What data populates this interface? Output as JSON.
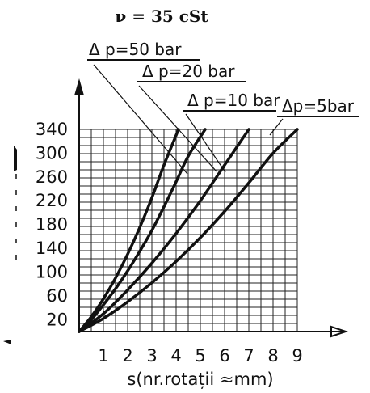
{
  "chart_data": {
    "type": "line",
    "title": "ν = 35 cSt",
    "xlabel": "s(nr.rotații ≈mm)",
    "ylabel": "",
    "xlim": [
      0,
      9
    ],
    "ylim": [
      0,
      340
    ],
    "xticks": [
      "1",
      "2",
      "3",
      "4",
      "5",
      "6",
      "7",
      "8",
      "9"
    ],
    "yticks": [
      "20",
      "60",
      "100",
      "140",
      "180",
      "220",
      "260",
      "300",
      "340"
    ],
    "grid": true,
    "colors": {
      "ink": "#111111",
      "grid": "#222222",
      "background": "#ffffff"
    },
    "series": [
      {
        "name": "Δ p=50 bar",
        "x": [
          0,
          0.5,
          1,
          1.5,
          2,
          2.5,
          3,
          3.5,
          4.1
        ],
        "y": [
          0,
          25,
          55,
          90,
          130,
          175,
          225,
          280,
          340
        ]
      },
      {
        "name": "Δ p=20 bar",
        "x": [
          0,
          0.5,
          1,
          1.5,
          2,
          2.5,
          3,
          3.5,
          4,
          4.5,
          5.2
        ],
        "y": [
          0,
          20,
          45,
          72,
          102,
          135,
          170,
          210,
          252,
          295,
          340
        ]
      },
      {
        "name": "Δ p=10 bar",
        "x": [
          0,
          1,
          2,
          3,
          4,
          5,
          6,
          7
        ],
        "y": [
          0,
          30,
          70,
          115,
          165,
          220,
          280,
          340
        ]
      },
      {
        "name": "Δp=5bar",
        "x": [
          0,
          1,
          2,
          3,
          4,
          5,
          6,
          7,
          8,
          9
        ],
        "y": [
          0,
          22,
          50,
          82,
          118,
          158,
          202,
          250,
          300,
          340
        ]
      }
    ]
  }
}
